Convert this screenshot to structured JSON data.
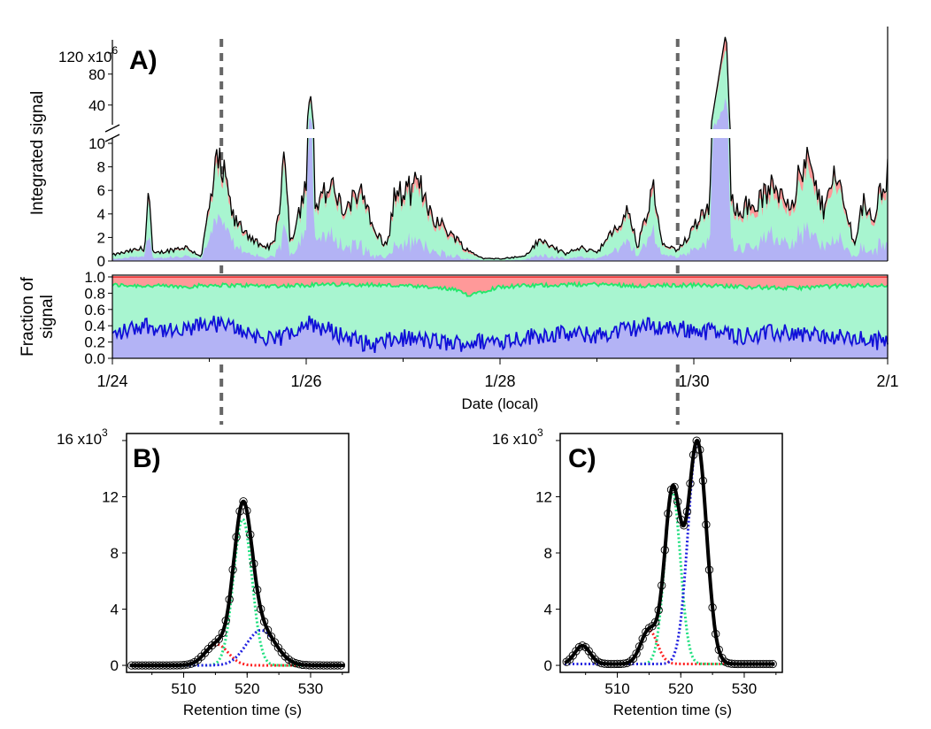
{
  "figure": {
    "colors": {
      "red": "#ff9999",
      "green": "#a8f5d0",
      "blue": "#b3b3f5",
      "green_line": "#22e86a",
      "blue_line": "#1010d8",
      "total_line": "#000000",
      "guide": "#666666"
    }
  },
  "chart_data": [
    {
      "id": "A",
      "type": "area",
      "panel_label": "A)",
      "xlabel": "Date (local)",
      "x_ticks": [
        "1/24",
        "1/26",
        "1/28",
        "1/30",
        "2/1"
      ],
      "xlim": [
        "1/24",
        "2/1"
      ],
      "guide_lines_at": [
        "1/25 03:00",
        "1/29 20:00"
      ],
      "top": {
        "ylabel": "Integrated signal",
        "scale_label": "120 x10",
        "scale_exponent": "6",
        "y_ticks_upper": [
          "80",
          "40"
        ],
        "y_ticks_lower": [
          "10",
          "8",
          "6",
          "4",
          "2",
          "0"
        ],
        "ylim_lower": [
          0,
          10
        ],
        "ylim_upper": [
          10,
          130
        ],
        "unit_multiplier": 1000000,
        "total_signal_knots": [
          [
            "1/24 00:00",
            0.5
          ],
          [
            "1/24 08:00",
            1.1
          ],
          [
            "1/24 09:00",
            6.2
          ],
          [
            "1/24 10:00",
            0.6
          ],
          [
            "1/24 18:00",
            1.2
          ],
          [
            "1/24 22:00",
            0.4
          ],
          [
            "1/25 00:00",
            4.5
          ],
          [
            "1/25 02:00",
            8.4
          ],
          [
            "1/25 04:00",
            6.8
          ],
          [
            "1/25 06:00",
            3.5
          ],
          [
            "1/25 10:00",
            2.2
          ],
          [
            "1/25 13:00",
            1.1
          ],
          [
            "1/25 16:00",
            1.4
          ],
          [
            "1/25 19:00",
            9.0
          ],
          [
            "1/25 20:00",
            1.5
          ],
          [
            "1/26 00:00",
            6.5
          ],
          [
            "1/26 01:00",
            57.0
          ],
          [
            "1/26 02:00",
            5.0
          ],
          [
            "1/26 06:00",
            6.2
          ],
          [
            "1/26 10:00",
            4.0
          ],
          [
            "1/26 14:00",
            6.7
          ],
          [
            "1/26 16:00",
            3.0
          ],
          [
            "1/26 20:00",
            1.2
          ],
          [
            "1/26 22:00",
            5.8
          ],
          [
            "1/27 00:00",
            5.6
          ],
          [
            "1/27 04:00",
            6.5
          ],
          [
            "1/27 08:00",
            3.5
          ],
          [
            "1/27 12:00",
            2.3
          ],
          [
            "1/27 16:00",
            0.9
          ],
          [
            "1/27 20:00",
            0.2
          ],
          [
            "1/28 00:00",
            0.2
          ],
          [
            "1/28 06:00",
            0.4
          ],
          [
            "1/28 10:00",
            1.8
          ],
          [
            "1/28 16:00",
            0.6
          ],
          [
            "1/28 20:00",
            1.1
          ],
          [
            "1/29 00:00",
            0.8
          ],
          [
            "1/29 04:00",
            2.4
          ],
          [
            "1/29 08:00",
            4.3
          ],
          [
            "1/29 10:00",
            1.1
          ],
          [
            "1/29 14:00",
            6.0
          ],
          [
            "1/29 16:00",
            1.5
          ],
          [
            "1/29 20:00",
            0.8
          ],
          [
            "1/30 00:00",
            3.0
          ],
          [
            "1/30 04:00",
            5.2
          ],
          [
            "1/30 08:00",
            136.0
          ],
          [
            "1/30 09:00",
            5.0
          ],
          [
            "1/30 14:00",
            4.5
          ],
          [
            "1/30 20:00",
            6.3
          ],
          [
            "1/31 00:00",
            5.1
          ],
          [
            "1/31 04:00",
            8.5
          ],
          [
            "1/31 08:00",
            4.3
          ],
          [
            "1/31 10:00",
            7.6
          ],
          [
            "1/31 12:00",
            6.2
          ],
          [
            "1/31 16:00",
            1.4
          ],
          [
            "1/31 18:00",
            5.5
          ],
          [
            "1/31 20:00",
            3.2
          ],
          [
            "2/1 00:00",
            7.8
          ],
          [
            "2/1 01:00",
            5.0
          ]
        ]
      },
      "bottom": {
        "ylabel_line1": "Fraction of",
        "ylabel_line2": "signal",
        "y_ticks": [
          "1.0",
          "0.8",
          "0.6",
          "0.4",
          "0.2",
          "0.0"
        ],
        "ylim": [
          0,
          1
        ],
        "upper_fraction_knots": [
          [
            "1/24 00:00",
            0.9
          ],
          [
            "1/24 18:00",
            0.88
          ],
          [
            "1/25 00:00",
            0.9
          ],
          [
            "1/25 18:00",
            0.89
          ],
          [
            "1/26 00:00",
            0.9
          ],
          [
            "1/26 12:00",
            0.91
          ],
          [
            "1/27 00:00",
            0.89
          ],
          [
            "1/27 12:00",
            0.85
          ],
          [
            "1/27 16:00",
            0.78
          ],
          [
            "1/28 00:00",
            0.88
          ],
          [
            "1/28 12:00",
            0.9
          ],
          [
            "1/29 00:00",
            0.91
          ],
          [
            "1/29 12:00",
            0.89
          ],
          [
            "1/30 00:00",
            0.9
          ],
          [
            "1/30 12:00",
            0.88
          ],
          [
            "1/31 00:00",
            0.86
          ],
          [
            "1/31 12:00",
            0.89
          ],
          [
            "2/1 00:00",
            0.9
          ]
        ],
        "lower_fraction_knots": [
          [
            "1/24 00:00",
            0.28
          ],
          [
            "1/24 08:00",
            0.42
          ],
          [
            "1/24 16:00",
            0.3
          ],
          [
            "1/25 00:00",
            0.44
          ],
          [
            "1/25 08:00",
            0.35
          ],
          [
            "1/25 16:00",
            0.2
          ],
          [
            "1/26 00:00",
            0.45
          ],
          [
            "1/26 08:00",
            0.3
          ],
          [
            "1/26 16:00",
            0.16
          ],
          [
            "1/27 00:00",
            0.25
          ],
          [
            "1/27 12:00",
            0.18
          ],
          [
            "1/28 00:00",
            0.22
          ],
          [
            "1/28 12:00",
            0.3
          ],
          [
            "1/29 00:00",
            0.28
          ],
          [
            "1/29 12:00",
            0.4
          ],
          [
            "1/30 00:00",
            0.35
          ],
          [
            "1/30 12:00",
            0.28
          ],
          [
            "1/31 00:00",
            0.32
          ],
          [
            "1/31 12:00",
            0.25
          ],
          [
            "2/1 00:00",
            0.2
          ]
        ]
      }
    },
    {
      "id": "B",
      "type": "scatter",
      "panel_label": "B)",
      "xlabel": "Retention time (s)",
      "x_ticks": [
        "510",
        "520",
        "530"
      ],
      "xlim": [
        501,
        536
      ],
      "scale_label": "16 x10",
      "scale_exponent": "3",
      "y_ticks": [
        "12",
        "8",
        "4",
        "0"
      ],
      "ylim": [
        -0.5,
        16.5
      ],
      "unit_multiplier": 1000,
      "series": [
        {
          "color": "#ff2020",
          "peaks": [
            {
              "center": 515.2,
              "height": 1.5,
              "width": 1.8
            }
          ]
        },
        {
          "color": "#20e080",
          "peaks": [
            {
              "center": 519.3,
              "height": 10.4,
              "width": 1.45
            }
          ]
        },
        {
          "color": "#2020e0",
          "peaks": [
            {
              "center": 522.2,
              "height": 2.5,
              "width": 2.3
            }
          ]
        }
      ],
      "points_x": {
        "start": 501.8,
        "end": 535.0,
        "step": 0.55
      }
    },
    {
      "id": "C",
      "type": "scatter",
      "panel_label": "C)",
      "xlabel": "Retention time (s)",
      "x_ticks": [
        "510",
        "520",
        "530"
      ],
      "xlim": [
        501,
        536
      ],
      "scale_label": "16 x10",
      "scale_exponent": "3",
      "y_ticks": [
        "12",
        "8",
        "4",
        "0"
      ],
      "ylim": [
        -0.5,
        16.5
      ],
      "unit_multiplier": 1000,
      "series": [
        {
          "color": "#ff2020",
          "peaks": [
            {
              "center": 504.5,
              "height": 1.3,
              "width": 1.2
            },
            {
              "center": 515.0,
              "height": 2.4,
              "width": 1.3
            }
          ]
        },
        {
          "color": "#20e080",
          "peaks": [
            {
              "center": 518.7,
              "height": 12.2,
              "width": 1.25
            }
          ]
        },
        {
          "color": "#2020e0",
          "peaks": [
            {
              "center": 522.6,
              "height": 15.8,
              "width": 1.45
            }
          ]
        }
      ],
      "baseline": 0.1,
      "points_x": {
        "start": 502.0,
        "end": 534.5,
        "step": 0.5
      }
    }
  ]
}
